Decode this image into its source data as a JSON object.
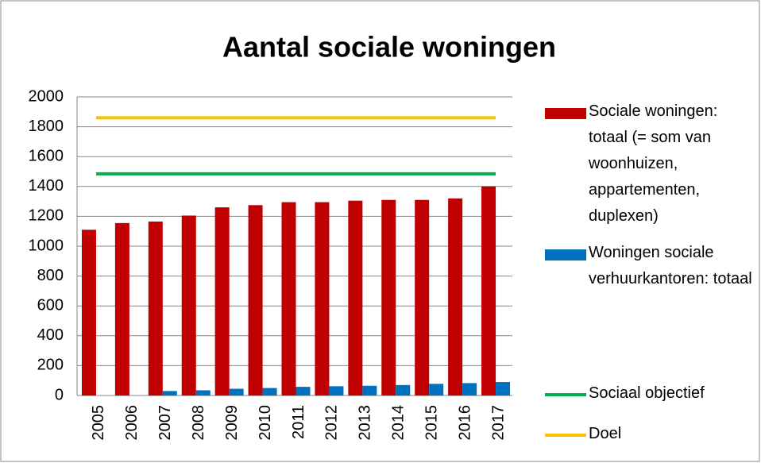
{
  "chart_data": {
    "type": "bar",
    "title": "Aantal sociale woningen",
    "categories": [
      "2005",
      "2006",
      "2007",
      "2008",
      "2009",
      "2010",
      "2011",
      "2012",
      "2013",
      "2014",
      "2015",
      "2016",
      "2017"
    ],
    "series": [
      {
        "name": "Sociale woningen: totaal (= som van woonhuizen, appartementen, duplexen)",
        "type": "bar",
        "color": "#c00000",
        "values": [
          1110,
          1155,
          1165,
          1205,
          1260,
          1275,
          1295,
          1295,
          1305,
          1310,
          1310,
          1320,
          1400
        ]
      },
      {
        "name": "Woningen sociale verhuurkantoren: totaal",
        "type": "bar",
        "color": "#0070c0",
        "values": [
          0,
          0,
          30,
          35,
          45,
          50,
          58,
          62,
          65,
          70,
          78,
          83,
          90
        ]
      },
      {
        "name": "Sociaal objectief",
        "type": "line",
        "color": "#00b050",
        "values": [
          1485,
          1485,
          1485,
          1485,
          1485,
          1485,
          1485,
          1485,
          1485,
          1485,
          1485,
          1485,
          1485
        ]
      },
      {
        "name": "Doel",
        "type": "line",
        "color": "#ffc000",
        "values": [
          1860,
          1860,
          1860,
          1860,
          1860,
          1860,
          1860,
          1860,
          1860,
          1860,
          1860,
          1860,
          1860
        ]
      }
    ],
    "ylim": [
      0,
      2000
    ],
    "yticks": [
      0,
      200,
      400,
      600,
      800,
      1000,
      1200,
      1400,
      1600,
      1800,
      2000
    ],
    "grid": true,
    "legend": "right"
  }
}
